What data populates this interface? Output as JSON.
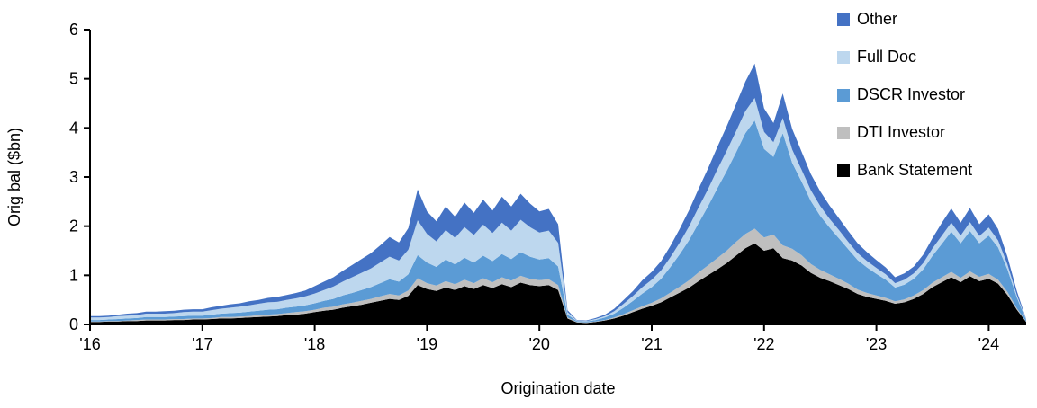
{
  "chart_data": {
    "type": "area",
    "stacked": true,
    "title": "",
    "xlabel": "Origination date",
    "ylabel": "Orig bal ($bn)",
    "ylim": [
      0,
      6
    ],
    "yticks": [
      0,
      1,
      2,
      3,
      4,
      5,
      6
    ],
    "grid": false,
    "legend_position": "top-right",
    "x_frequency": "monthly",
    "x_start": "2016-01",
    "n_points": 101,
    "xticks": [
      {
        "index": 0,
        "label": "'16"
      },
      {
        "index": 12,
        "label": "'17"
      },
      {
        "index": 24,
        "label": "'18"
      },
      {
        "index": 36,
        "label": "'19"
      },
      {
        "index": 48,
        "label": "'20"
      },
      {
        "index": 60,
        "label": "'21"
      },
      {
        "index": 72,
        "label": "'22"
      },
      {
        "index": 84,
        "label": "'23"
      },
      {
        "index": 96,
        "label": "'24"
      }
    ],
    "series": [
      {
        "name": "Bank Statement",
        "color": "#000000",
        "values": [
          0.05,
          0.05,
          0.06,
          0.06,
          0.07,
          0.07,
          0.08,
          0.08,
          0.08,
          0.09,
          0.09,
          0.1,
          0.1,
          0.11,
          0.12,
          0.12,
          0.13,
          0.14,
          0.15,
          0.16,
          0.17,
          0.19,
          0.2,
          0.22,
          0.25,
          0.28,
          0.3,
          0.34,
          0.37,
          0.4,
          0.44,
          0.48,
          0.52,
          0.5,
          0.58,
          0.8,
          0.72,
          0.68,
          0.75,
          0.7,
          0.78,
          0.72,
          0.8,
          0.74,
          0.82,
          0.76,
          0.85,
          0.8,
          0.78,
          0.8,
          0.7,
          0.12,
          0.04,
          0.03,
          0.05,
          0.08,
          0.12,
          0.18,
          0.25,
          0.32,
          0.38,
          0.45,
          0.55,
          0.65,
          0.75,
          0.88,
          1.0,
          1.12,
          1.25,
          1.4,
          1.55,
          1.65,
          1.5,
          1.55,
          1.35,
          1.3,
          1.2,
          1.05,
          0.95,
          0.88,
          0.8,
          0.72,
          0.62,
          0.56,
          0.52,
          0.48,
          0.42,
          0.45,
          0.52,
          0.62,
          0.76,
          0.86,
          0.96,
          0.86,
          0.98,
          0.88,
          0.93,
          0.83,
          0.6,
          0.3,
          0.05
        ]
      },
      {
        "name": "DTI Investor",
        "color": "#BFBFBF",
        "values": [
          0.01,
          0.01,
          0.01,
          0.01,
          0.01,
          0.02,
          0.02,
          0.02,
          0.02,
          0.02,
          0.02,
          0.02,
          0.02,
          0.02,
          0.03,
          0.03,
          0.03,
          0.03,
          0.04,
          0.04,
          0.04,
          0.04,
          0.05,
          0.05,
          0.05,
          0.06,
          0.06,
          0.07,
          0.07,
          0.08,
          0.08,
          0.09,
          0.1,
          0.09,
          0.11,
          0.14,
          0.12,
          0.11,
          0.13,
          0.12,
          0.13,
          0.12,
          0.14,
          0.12,
          0.14,
          0.13,
          0.14,
          0.13,
          0.12,
          0.12,
          0.1,
          0.02,
          0.01,
          0.01,
          0.01,
          0.01,
          0.02,
          0.03,
          0.04,
          0.05,
          0.06,
          0.08,
          0.1,
          0.12,
          0.15,
          0.18,
          0.2,
          0.23,
          0.25,
          0.28,
          0.29,
          0.3,
          0.27,
          0.28,
          0.26,
          0.24,
          0.21,
          0.18,
          0.16,
          0.14,
          0.13,
          0.11,
          0.09,
          0.08,
          0.07,
          0.06,
          0.05,
          0.06,
          0.07,
          0.08,
          0.09,
          0.1,
          0.11,
          0.09,
          0.1,
          0.09,
          0.1,
          0.08,
          0.06,
          0.03,
          0.01
        ]
      },
      {
        "name": "DSCR Investor",
        "color": "#5B9BD5",
        "values": [
          0.03,
          0.03,
          0.03,
          0.04,
          0.04,
          0.04,
          0.05,
          0.05,
          0.05,
          0.05,
          0.06,
          0.06,
          0.06,
          0.07,
          0.07,
          0.08,
          0.08,
          0.09,
          0.09,
          0.1,
          0.1,
          0.11,
          0.11,
          0.12,
          0.13,
          0.14,
          0.16,
          0.18,
          0.2,
          0.22,
          0.24,
          0.27,
          0.3,
          0.28,
          0.33,
          0.47,
          0.42,
          0.38,
          0.44,
          0.4,
          0.45,
          0.42,
          0.46,
          0.43,
          0.47,
          0.44,
          0.48,
          0.45,
          0.42,
          0.43,
          0.38,
          0.06,
          0.02,
          0.02,
          0.03,
          0.05,
          0.08,
          0.13,
          0.19,
          0.26,
          0.32,
          0.4,
          0.52,
          0.66,
          0.82,
          1.0,
          1.2,
          1.42,
          1.62,
          1.82,
          2.05,
          2.2,
          1.8,
          1.58,
          2.28,
          1.75,
          1.5,
          1.28,
          1.1,
          0.95,
          0.82,
          0.7,
          0.6,
          0.52,
          0.44,
          0.37,
          0.28,
          0.3,
          0.34,
          0.42,
          0.55,
          0.68,
          0.82,
          0.7,
          0.82,
          0.68,
          0.78,
          0.66,
          0.46,
          0.22,
          0.03
        ]
      },
      {
        "name": "Full Doc",
        "color": "#BDD7EE",
        "values": [
          0.05,
          0.05,
          0.05,
          0.06,
          0.06,
          0.06,
          0.07,
          0.07,
          0.07,
          0.07,
          0.08,
          0.08,
          0.08,
          0.09,
          0.1,
          0.11,
          0.12,
          0.13,
          0.14,
          0.15,
          0.15,
          0.16,
          0.17,
          0.18,
          0.2,
          0.22,
          0.25,
          0.28,
          0.32,
          0.35,
          0.38,
          0.42,
          0.46,
          0.43,
          0.5,
          0.71,
          0.58,
          0.52,
          0.6,
          0.54,
          0.62,
          0.56,
          0.63,
          0.57,
          0.64,
          0.58,
          0.66,
          0.6,
          0.55,
          0.56,
          0.48,
          0.05,
          0.01,
          0.01,
          0.02,
          0.03,
          0.05,
          0.08,
          0.1,
          0.13,
          0.15,
          0.17,
          0.2,
          0.24,
          0.28,
          0.32,
          0.35,
          0.38,
          0.41,
          0.43,
          0.45,
          0.46,
          0.35,
          0.3,
          0.31,
          0.27,
          0.24,
          0.22,
          0.2,
          0.18,
          0.17,
          0.15,
          0.14,
          0.13,
          0.12,
          0.11,
          0.09,
          0.1,
          0.11,
          0.13,
          0.15,
          0.17,
          0.18,
          0.16,
          0.18,
          0.15,
          0.16,
          0.14,
          0.1,
          0.05,
          0.01
        ]
      },
      {
        "name": "Other",
        "color": "#4472C4",
        "values": [
          0.03,
          0.03,
          0.03,
          0.03,
          0.04,
          0.04,
          0.04,
          0.04,
          0.05,
          0.05,
          0.05,
          0.05,
          0.05,
          0.06,
          0.06,
          0.07,
          0.07,
          0.08,
          0.08,
          0.09,
          0.1,
          0.1,
          0.11,
          0.12,
          0.15,
          0.17,
          0.19,
          0.22,
          0.25,
          0.28,
          0.31,
          0.35,
          0.4,
          0.37,
          0.44,
          0.63,
          0.46,
          0.41,
          0.48,
          0.43,
          0.5,
          0.45,
          0.51,
          0.46,
          0.53,
          0.49,
          0.53,
          0.48,
          0.43,
          0.44,
          0.38,
          0.04,
          0.01,
          0.01,
          0.02,
          0.03,
          0.05,
          0.08,
          0.1,
          0.14,
          0.16,
          0.19,
          0.23,
          0.28,
          0.33,
          0.38,
          0.42,
          0.46,
          0.5,
          0.55,
          0.6,
          0.7,
          0.48,
          0.39,
          0.5,
          0.42,
          0.37,
          0.33,
          0.3,
          0.27,
          0.24,
          0.22,
          0.2,
          0.18,
          0.16,
          0.14,
          0.12,
          0.13,
          0.14,
          0.17,
          0.21,
          0.26,
          0.29,
          0.26,
          0.29,
          0.24,
          0.27,
          0.23,
          0.16,
          0.08,
          0.01
        ]
      }
    ],
    "legend": [
      {
        "label": "Other",
        "color": "#4472C4"
      },
      {
        "label": "Full Doc",
        "color": "#BDD7EE"
      },
      {
        "label": "DSCR Investor",
        "color": "#5B9BD5"
      },
      {
        "label": "DTI Investor",
        "color": "#BFBFBF"
      },
      {
        "label": "Bank Statement",
        "color": "#000000"
      }
    ]
  }
}
